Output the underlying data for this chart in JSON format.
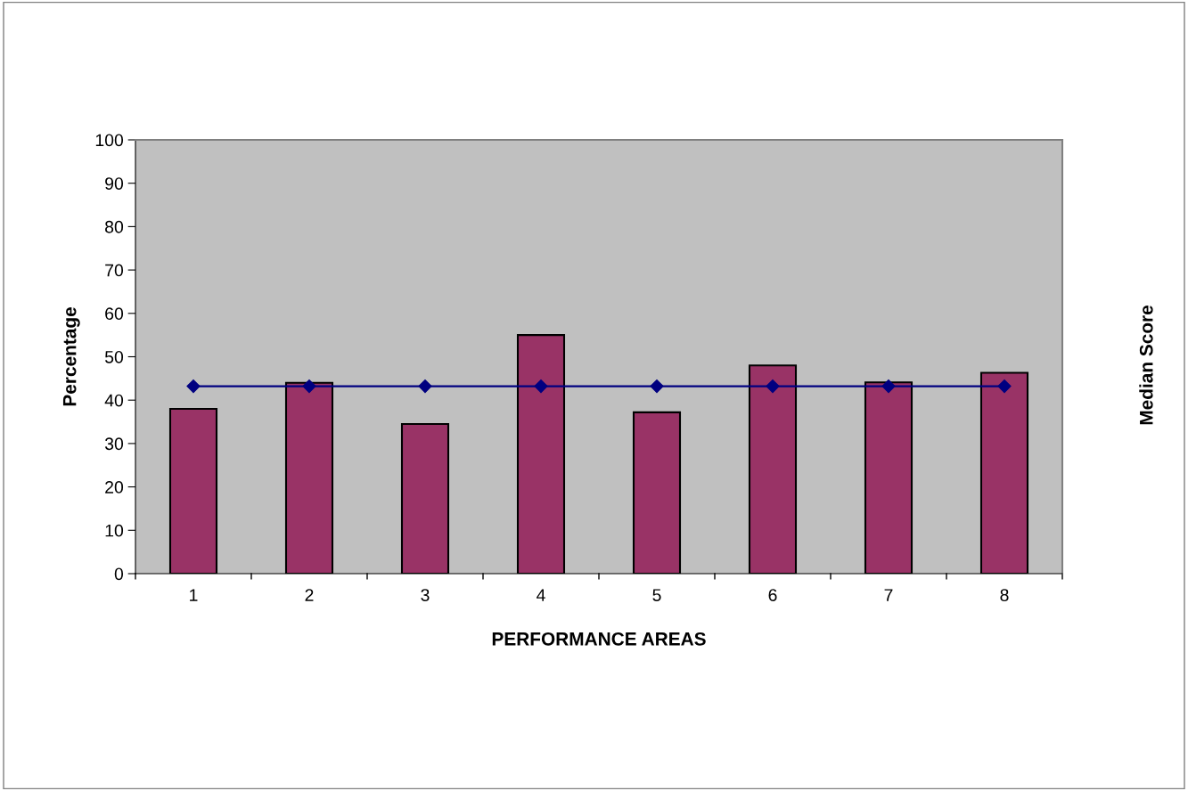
{
  "chart_data": {
    "type": "bar",
    "xlabel": "PERFORMANCE AREAS",
    "ylabel": "Percentage",
    "y2label": "Median Score",
    "categories": [
      "1",
      "2",
      "3",
      "4",
      "5",
      "6",
      "7",
      "8"
    ],
    "series": [
      {
        "color": "#993366",
        "values": [
          38,
          44,
          34.5,
          55,
          37.2,
          48,
          44.1,
          46.3
        ]
      },
      {
        "type": "line",
        "color": "#000080",
        "marker": "diamond",
        "values": [
          43.2,
          43.2,
          43.2,
          43.2,
          43.2,
          43.2,
          43.2,
          43.2
        ]
      }
    ],
    "ylim": [
      0,
      100
    ],
    "yticks": [
      0,
      10,
      20,
      30,
      40,
      50,
      60,
      70,
      80,
      90,
      100
    ],
    "grid": false
  }
}
